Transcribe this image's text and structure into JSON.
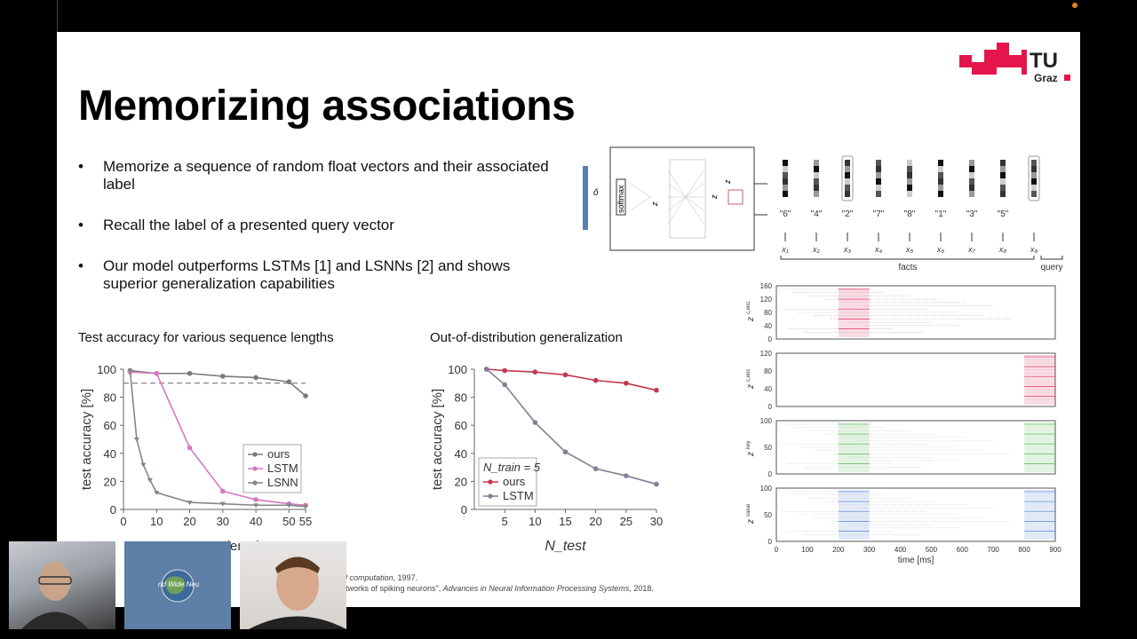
{
  "slide": {
    "title": "Memorizing associations",
    "logo": {
      "text_top": "TU",
      "text_bottom": "Graz",
      "color": "#e4154b"
    },
    "bullets": [
      "Memorize a sequence of random float vectors and their associated label",
      "Recall the label of a presented query vector",
      "Our model outperforms LSTMs [1] and LSNNs [2] and shows superior generalization capabilities"
    ],
    "references": {
      "ref1_fragment": "al computation",
      "ref1_year": ", 1997.",
      "ref2_fragment": "etworks of spiking neurons\", ",
      "ref2_venue": "Advances in Neural Information Processing Systems",
      "ref2_year": ", 2018."
    },
    "diagram": {
      "labels": [
        "\"6\"",
        "\"4\"",
        "\"2\"",
        "\"7\"",
        "\"8\"",
        "\"1\"",
        "\"3\"",
        "\"5\""
      ],
      "inputs": [
        "x₁",
        "x₂",
        "x₃",
        "x₄",
        "x₅",
        "x₆",
        "x₇",
        "x₈",
        "x₉"
      ],
      "facts_label": "facts",
      "query_label": "query",
      "softmax_label": "softmax",
      "output_label": "ô",
      "enc_label": "z",
      "key_label": "z",
      "value_label": "z"
    },
    "raster": {
      "xlabel": "time [ms]",
      "xticks": [
        0,
        100,
        200,
        300,
        400,
        500,
        600,
        700,
        800,
        900
      ],
      "panels": [
        {
          "ylabel": "z",
          "sup": "c,enc",
          "yticks": [
            0,
            40,
            80,
            120,
            160
          ],
          "color": "#e4154b"
        },
        {
          "ylabel": "z",
          "sup": "c,enc",
          "yticks": [
            0,
            40,
            80,
            120
          ],
          "color": "#e4154b"
        },
        {
          "ylabel": "z",
          "sup": "key",
          "yticks": [
            0,
            50,
            100
          ],
          "color": "#3bb03b"
        },
        {
          "ylabel": "z",
          "sup": "value",
          "yticks": [
            0,
            50,
            100
          ],
          "color": "#3b6fd0"
        }
      ]
    }
  },
  "chart_data": [
    {
      "type": "line",
      "title": "Test accuracy for various sequence lengths",
      "xlabel": "sequence length",
      "ylabel": "test accuracy [%]",
      "xlim": [
        0,
        55
      ],
      "ylim": [
        0,
        100
      ],
      "xticks": [
        0,
        10,
        20,
        30,
        40,
        50,
        55
      ],
      "yticks": [
        0,
        20,
        40,
        60,
        80,
        100
      ],
      "reference_line": 90,
      "legend_position": "center-right",
      "series": [
        {
          "name": "ours",
          "color": "#7a7a7a",
          "x": [
            2,
            10,
            20,
            30,
            40,
            50,
            55
          ],
          "y": [
            99,
            97,
            97,
            95,
            94,
            91,
            81
          ]
        },
        {
          "name": "LSTM",
          "color": "#d877c0",
          "x": [
            2,
            10,
            20,
            30,
            40,
            50,
            55
          ],
          "y": [
            98,
            97,
            44,
            13,
            7,
            4,
            3
          ]
        },
        {
          "name": "LSNN",
          "color": "#7f8a7f",
          "x": [
            2,
            4,
            6,
            8,
            10,
            20,
            30,
            40,
            50,
            55
          ],
          "y": [
            99,
            50,
            32,
            21,
            12,
            5,
            4,
            3,
            3,
            2
          ]
        }
      ]
    },
    {
      "type": "line",
      "title": "Out-of-distribution generalization",
      "xlabel": "N_test",
      "ylabel": "test accuracy [%]",
      "xlim": [
        0,
        30
      ],
      "ylim": [
        0,
        100
      ],
      "xticks": [
        5,
        10,
        15,
        20,
        25,
        30
      ],
      "yticks": [
        0,
        20,
        40,
        60,
        80,
        100
      ],
      "legend_title": "N_train = 5",
      "legend_position": "bottom-left",
      "series": [
        {
          "name": "ours",
          "color": "#c4344d",
          "x": [
            2,
            5,
            10,
            15,
            20,
            25,
            30
          ],
          "y": [
            100,
            99,
            98,
            96,
            92,
            90,
            85
          ]
        },
        {
          "name": "LSTM",
          "color": "#7f7f95",
          "x": [
            2,
            5,
            10,
            15,
            20,
            25,
            30
          ],
          "y": [
            100,
            89,
            62,
            41,
            29,
            24,
            18
          ]
        }
      ]
    }
  ],
  "video_tiles": [
    {
      "name": "participant-1"
    },
    {
      "name": "participant-2",
      "label": "rld Wide Neu"
    },
    {
      "name": "participant-3"
    }
  ]
}
